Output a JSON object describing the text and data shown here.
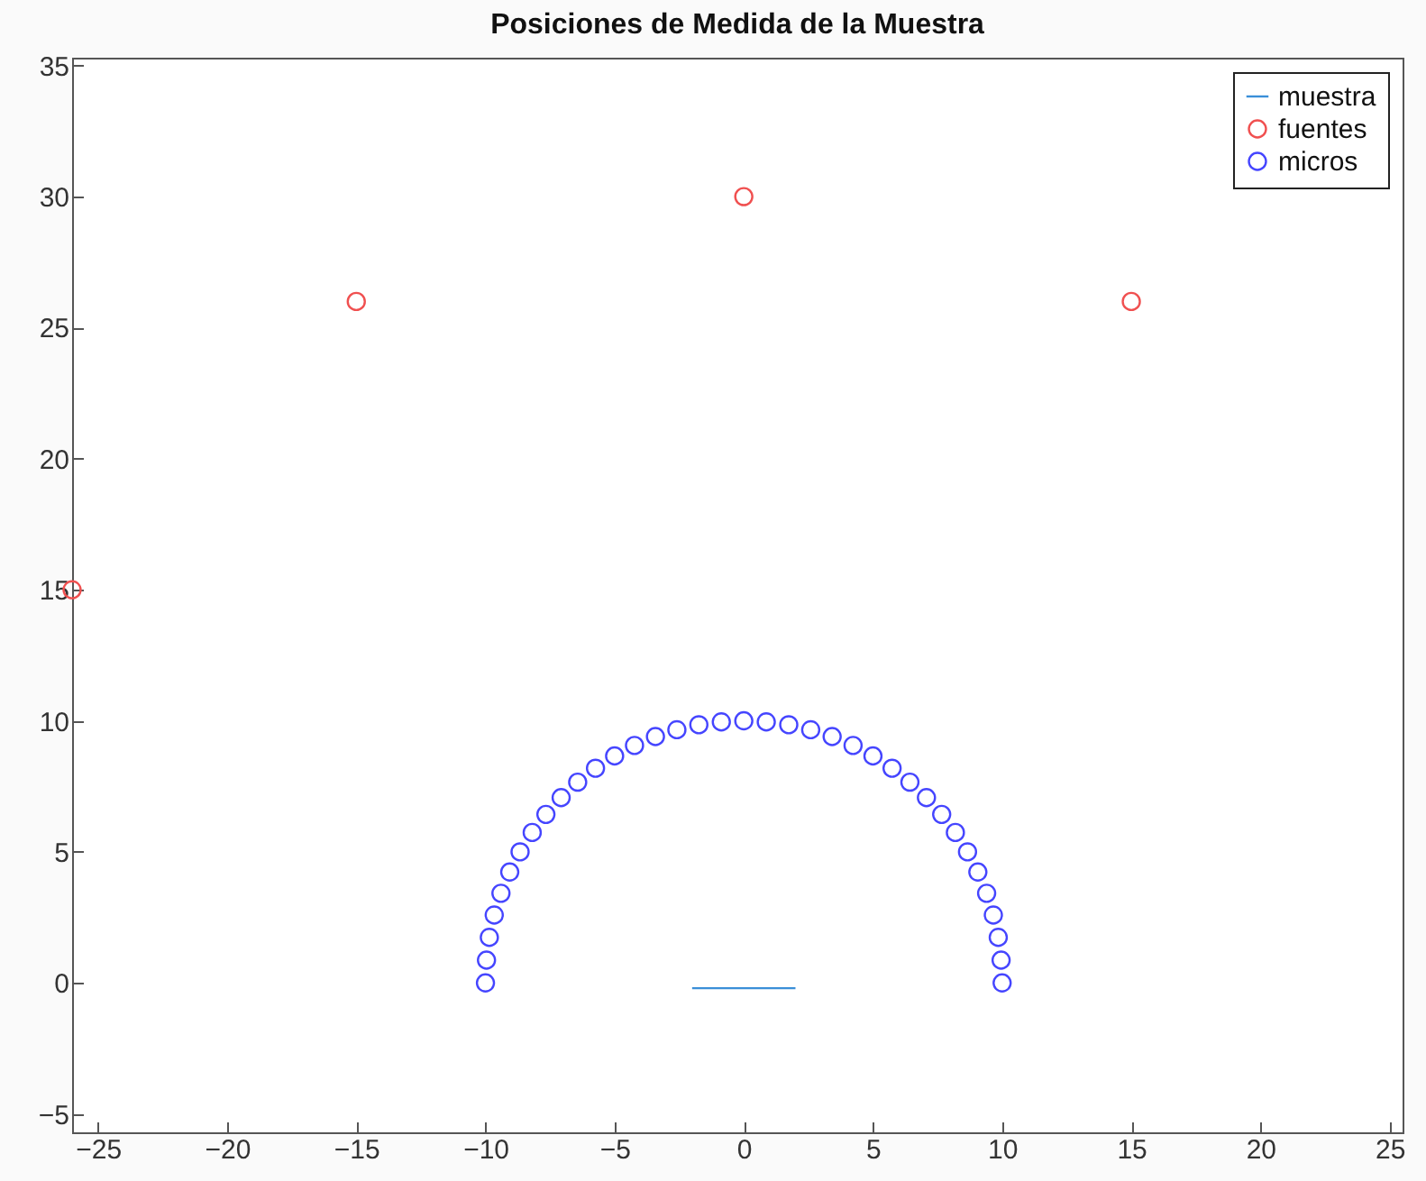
{
  "chart_data": {
    "type": "scatter",
    "title": "Posiciones  de Medida de la Muestra",
    "xlim": [
      -26,
      25.5
    ],
    "ylim": [
      -5.7,
      35.3
    ],
    "xticks": [
      -25,
      -20,
      -15,
      -10,
      -5,
      0,
      5,
      10,
      15,
      20,
      25
    ],
    "yticks": [
      -5,
      0,
      5,
      10,
      15,
      20,
      25,
      30,
      35
    ],
    "grid": false,
    "legend": "top right",
    "marker": "circle",
    "series": [
      {
        "name": "muestra",
        "type": "line",
        "marker": "none",
        "color": "#3a8fd8",
        "x": [
          -2,
          0,
          2
        ],
        "values": [
          -0.2,
          -0.2,
          -0.2
        ]
      },
      {
        "name": "fuentes",
        "color": "#f05050",
        "x": [
          -26,
          -15,
          0,
          15
        ],
        "values": [
          15,
          26,
          30,
          26
        ]
      },
      {
        "name": "micros",
        "color": "#4545ff",
        "x": [
          -10,
          -9.96,
          -9.85,
          -9.66,
          -9.4,
          -9.06,
          -8.66,
          -8.19,
          -7.66,
          -7.07,
          -6.43,
          -5.74,
          -5,
          -4.23,
          -3.42,
          -2.59,
          -1.74,
          -0.87,
          0,
          0.87,
          1.74,
          2.59,
          3.42,
          4.23,
          5,
          5.74,
          6.43,
          7.07,
          7.66,
          8.19,
          8.66,
          9.06,
          9.4,
          9.66,
          9.85,
          9.96,
          10
        ],
        "values": [
          0,
          0.87,
          1.74,
          2.59,
          3.42,
          4.23,
          5,
          5.74,
          6.43,
          7.07,
          7.66,
          8.19,
          8.66,
          9.06,
          9.4,
          9.66,
          9.85,
          9.96,
          10,
          9.96,
          9.85,
          9.66,
          9.4,
          9.06,
          8.66,
          8.19,
          7.66,
          7.07,
          6.43,
          5.74,
          5,
          4.23,
          3.42,
          2.59,
          1.74,
          0.87,
          0
        ]
      }
    ]
  }
}
